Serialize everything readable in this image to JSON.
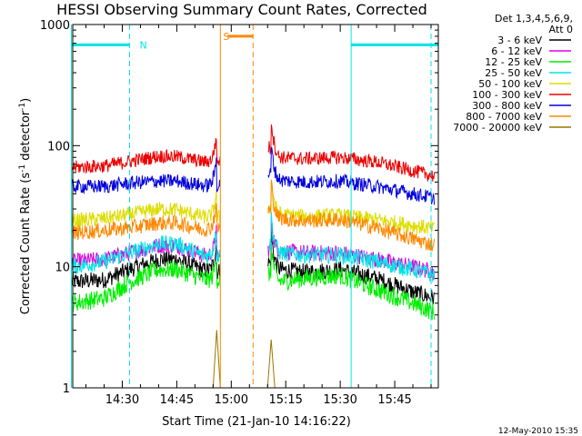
{
  "chart_data": {
    "type": "line",
    "title": "HESSI Observing Summary Count Rates, Corrected",
    "xlabel": "Start Time (21-Jan-10 14:16:22)",
    "ylabel_prefix": "Corrected Count Rate (s",
    "ylabel_sup1": "-1",
    "ylabel_mid": " detector",
    "ylabel_sup2": "-1",
    "ylabel_suffix": ")",
    "y_scale": "log",
    "ylim": [
      1,
      1000
    ],
    "xlim": [
      "14:16:22",
      "15:57:00"
    ],
    "x_ticks": [
      "14:30",
      "14:45",
      "15:00",
      "15:15",
      "15:30",
      "15:45"
    ],
    "y_ticks": [
      "1",
      "10",
      "100",
      "1000"
    ],
    "grid": false,
    "legend_placement": "right",
    "legend_header": [
      "Det 1,3,4,5,6,9,",
      "Att 0"
    ],
    "series": [
      {
        "name": "3 - 6 keV",
        "color": "#000000",
        "points": [
          [
            "14:16",
            7.5
          ],
          [
            "14:25",
            7.8
          ],
          [
            "14:32",
            9.5
          ],
          [
            "14:40",
            11.5
          ],
          [
            "14:45",
            11.5
          ],
          [
            "14:52",
            9.5
          ],
          [
            "14:55",
            9.0
          ],
          [
            "15:10",
            11.0
          ],
          [
            "15:13",
            9.5
          ],
          [
            "15:20",
            9.0
          ],
          [
            "15:30",
            9.5
          ],
          [
            "15:40",
            8.0
          ],
          [
            "15:50",
            6.2
          ],
          [
            "15:56",
            5.5
          ]
        ]
      },
      {
        "name": "6 - 12 keV",
        "color": "#dd00dd",
        "points": [
          [
            "14:16",
            11.0
          ],
          [
            "14:25",
            11.5
          ],
          [
            "14:32",
            13.0
          ],
          [
            "14:40",
            15.0
          ],
          [
            "14:45",
            15.0
          ],
          [
            "14:52",
            12.5
          ],
          [
            "14:55",
            12.0
          ],
          [
            "15:10",
            14.0
          ],
          [
            "15:13",
            13.5
          ],
          [
            "15:20",
            13.0
          ],
          [
            "15:30",
            13.0
          ],
          [
            "15:40",
            11.5
          ],
          [
            "15:50",
            10.0
          ],
          [
            "15:56",
            9.0
          ]
        ]
      },
      {
        "name": "12 - 25 keV",
        "color": "#00ee00",
        "points": [
          [
            "14:16",
            5.0
          ],
          [
            "14:25",
            5.5
          ],
          [
            "14:32",
            7.5
          ],
          [
            "14:40",
            9.5
          ],
          [
            "14:45",
            9.5
          ],
          [
            "14:52",
            8.0
          ],
          [
            "14:55",
            7.5
          ],
          [
            "15:10",
            9.0
          ],
          [
            "15:13",
            7.5
          ],
          [
            "15:20",
            8.0
          ],
          [
            "15:30",
            8.5
          ],
          [
            "15:40",
            6.5
          ],
          [
            "15:50",
            5.0
          ],
          [
            "15:56",
            4.2
          ]
        ]
      },
      {
        "name": "25 - 50 keV",
        "color": "#00e5e5",
        "points": [
          [
            "14:16",
            10.0
          ],
          [
            "14:25",
            11.0
          ],
          [
            "14:32",
            13.0
          ],
          [
            "14:40",
            15.5
          ],
          [
            "14:45",
            15.5
          ],
          [
            "14:52",
            12.5
          ],
          [
            "14:55",
            12.0
          ],
          [
            "15:10",
            16.0
          ],
          [
            "15:13",
            13.0
          ],
          [
            "15:20",
            12.5
          ],
          [
            "15:30",
            12.5
          ],
          [
            "15:40",
            11.0
          ],
          [
            "15:50",
            9.5
          ],
          [
            "15:56",
            8.5
          ]
        ]
      },
      {
        "name": "50 - 100 keV",
        "color": "#dddd00",
        "points": [
          [
            "14:16",
            24.0
          ],
          [
            "14:25",
            25.0
          ],
          [
            "14:32",
            27.0
          ],
          [
            "14:40",
            30.0
          ],
          [
            "14:45",
            29.5
          ],
          [
            "14:52",
            26.0
          ],
          [
            "14:55",
            25.0
          ],
          [
            "15:10",
            32.0
          ],
          [
            "15:13",
            27.0
          ],
          [
            "15:20",
            26.0
          ],
          [
            "15:30",
            26.5
          ],
          [
            "15:40",
            24.5
          ],
          [
            "15:50",
            22.0
          ],
          [
            "15:56",
            20.5
          ]
        ]
      },
      {
        "name": "100 - 300 keV",
        "color": "#ee0000",
        "points": [
          [
            "14:16",
            66.0
          ],
          [
            "14:25",
            68.0
          ],
          [
            "14:32",
            74.0
          ],
          [
            "14:40",
            82.0
          ],
          [
            "14:45",
            81.0
          ],
          [
            "14:52",
            74.0
          ],
          [
            "14:55",
            72.0
          ],
          [
            "15:10",
            100.0
          ],
          [
            "15:13",
            80.0
          ],
          [
            "15:20",
            78.0
          ],
          [
            "15:30",
            80.0
          ],
          [
            "15:40",
            73.0
          ],
          [
            "15:50",
            62.0
          ],
          [
            "15:56",
            56.0
          ]
        ]
      },
      {
        "name": "300 - 800 keV",
        "color": "#0000dd",
        "points": [
          [
            "14:16",
            46.0
          ],
          [
            "14:25",
            46.0
          ],
          [
            "14:32",
            49.0
          ],
          [
            "14:40",
            51.0
          ],
          [
            "14:45",
            51.0
          ],
          [
            "14:52",
            47.0
          ],
          [
            "14:55",
            46.0
          ],
          [
            "15:10",
            60.0
          ],
          [
            "15:13",
            52.0
          ],
          [
            "15:20",
            50.0
          ],
          [
            "15:30",
            51.0
          ],
          [
            "15:40",
            46.0
          ],
          [
            "15:50",
            40.0
          ],
          [
            "15:56",
            37.0
          ]
        ]
      },
      {
        "name": "800 - 7000 keV",
        "color": "#ff8800",
        "points": [
          [
            "14:16",
            19.0
          ],
          [
            "14:25",
            20.0
          ],
          [
            "14:32",
            21.0
          ],
          [
            "14:40",
            23.0
          ],
          [
            "14:45",
            23.0
          ],
          [
            "14:52",
            20.5
          ],
          [
            "14:55",
            20.0
          ],
          [
            "15:10",
            30.0
          ],
          [
            "15:13",
            25.0
          ],
          [
            "15:20",
            24.0
          ],
          [
            "15:30",
            24.5
          ],
          [
            "15:40",
            21.0
          ],
          [
            "15:50",
            17.0
          ],
          [
            "15:56",
            15.0
          ]
        ]
      },
      {
        "name": "7000 - 20000 keV",
        "color": "#997700",
        "points": [
          [
            "14:55",
            1.0
          ],
          [
            "14:56",
            3.0
          ],
          [
            "14:57",
            1.0
          ],
          [
            "15:10",
            1.0
          ],
          [
            "15:11",
            2.5
          ],
          [
            "15:12",
            1.0
          ]
        ]
      }
    ],
    "gaps": [
      [
        "14:57",
        "15:10"
      ]
    ],
    "spike_times": [
      "14:56",
      "15:11"
    ],
    "annotations": [
      {
        "text": "N",
        "color": "#00e5e5",
        "bars": [
          [
            "14:16",
            "14:32"
          ],
          [
            "15:33",
            "15:57"
          ]
        ],
        "y": 680,
        "marker_time": "14:34",
        "dashed_times": [
          "14:32",
          "15:55"
        ],
        "solid_times": [
          "14:16",
          "15:33"
        ]
      },
      {
        "text": "S",
        "color": "#ff8800",
        "bars": [
          [
            "14:59",
            "15:06"
          ]
        ],
        "y": 800,
        "marker_time": "14:57",
        "dashed_times": [
          "15:06"
        ],
        "solid_times": [
          "14:57"
        ]
      }
    ]
  },
  "stamp": "12-May-2010 15:35"
}
